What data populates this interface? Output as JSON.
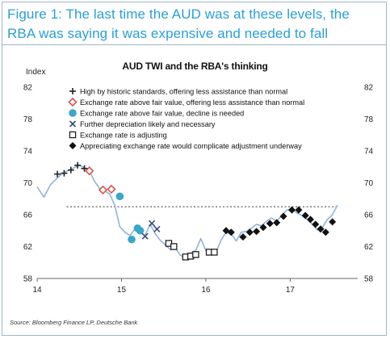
{
  "figure": {
    "title_line1": "Figure 1: The last time the AUD was at these levels, the",
    "title_line2": "RBA was saying it was expensive and needed to fall",
    "source": "Source: Bloomberg Finance LP, Deutsche Bank"
  },
  "chart_data": {
    "type": "line",
    "title": "AUD TWI and the RBA's thinking",
    "ylabel": "Index",
    "ylim": [
      58,
      82
    ],
    "xlim": [
      14,
      17.8
    ],
    "y_ticks": [
      "82",
      "78",
      "74",
      "70",
      "66",
      "62",
      "58"
    ],
    "x_ticks": [
      "14",
      "15",
      "16",
      "17"
    ],
    "grid": false,
    "legend_position": "top-center",
    "reference_line": {
      "value": 67,
      "style": "dotted",
      "x_range": [
        14.35,
        17.55
      ]
    },
    "series_line": {
      "name": "AUD TWI",
      "color": "#8fb4dc",
      "x": [
        14.0,
        14.08,
        14.16,
        14.24,
        14.3,
        14.36,
        14.42,
        14.5,
        14.56,
        14.62,
        14.68,
        14.74,
        14.8,
        14.86,
        14.92,
        14.98,
        15.04,
        15.1,
        15.16,
        15.22,
        15.28,
        15.34,
        15.4,
        15.46,
        15.52,
        15.58,
        15.64,
        15.7,
        15.76,
        15.82,
        15.88,
        15.94,
        16.0,
        16.06,
        16.12,
        16.18,
        16.24,
        16.3,
        16.36,
        16.42,
        16.48,
        16.54,
        16.6,
        16.66,
        16.72,
        16.78,
        16.84,
        16.9,
        16.96,
        17.02,
        17.08,
        17.14,
        17.2,
        17.26,
        17.32,
        17.38,
        17.44,
        17.5,
        17.56
      ],
      "y": [
        69.5,
        68.2,
        69.8,
        70.6,
        71.2,
        71.5,
        71.8,
        72.2,
        71.9,
        71.5,
        70.2,
        69.3,
        69.0,
        68.6,
        67.2,
        64.5,
        63.8,
        63.4,
        64.2,
        63.7,
        63.4,
        64.8,
        63.6,
        62.8,
        62.2,
        61.6,
        61.8,
        60.9,
        60.6,
        61.2,
        61.5,
        63.0,
        61.5,
        61.2,
        61.3,
        62.8,
        63.8,
        63.6,
        62.7,
        63.8,
        63.9,
        64.3,
        64.8,
        64.6,
        65.2,
        65.6,
        65.2,
        65.9,
        66.6,
        66.7,
        66.2,
        65.9,
        65.4,
        64.8,
        64.1,
        64.4,
        65.4,
        66.0,
        67.2
      ]
    },
    "series": [
      {
        "name": "High by historic standards, offering less assistance than normal",
        "marker": "plus",
        "color": "#222222",
        "points": [
          [
            14.24,
            71.1
          ],
          [
            14.32,
            71.2
          ],
          [
            14.4,
            71.6
          ],
          [
            14.48,
            72.2
          ],
          [
            14.56,
            71.8
          ]
        ]
      },
      {
        "name": "Exchange rate above fair value, offering less assistance than normal",
        "marker": "open-diamond",
        "color": "#e0524b",
        "points": [
          [
            14.62,
            71.5
          ],
          [
            14.78,
            69.1
          ],
          [
            14.88,
            69.2
          ]
        ]
      },
      {
        "name": "Exchange rate above fair value, decline is needed",
        "marker": "filled-circle",
        "color": "#3aa6c8",
        "points": [
          [
            14.98,
            68.3
          ],
          [
            15.12,
            62.9
          ],
          [
            15.19,
            64.3
          ],
          [
            15.22,
            64.0
          ]
        ]
      },
      {
        "name": "Further depreciation likely and necessary",
        "marker": "x",
        "color": "#334e7a",
        "points": [
          [
            15.28,
            63.3
          ],
          [
            15.36,
            64.9
          ],
          [
            15.42,
            64.2
          ]
        ]
      },
      {
        "name": "Exchange rate is adjusting",
        "marker": "open-square",
        "color": "#222222",
        "points": [
          [
            15.56,
            62.4
          ],
          [
            15.62,
            62.0
          ],
          [
            15.76,
            60.7
          ],
          [
            15.82,
            60.8
          ],
          [
            15.88,
            61.0
          ],
          [
            16.04,
            61.3
          ],
          [
            16.1,
            61.3
          ]
        ]
      },
      {
        "name": "Appreciating exchange rate would complicate adjustment underway",
        "marker": "filled-diamond",
        "color": "#111111",
        "points": [
          [
            16.24,
            64.0
          ],
          [
            16.3,
            63.8
          ],
          [
            16.44,
            63.2
          ],
          [
            16.52,
            63.8
          ],
          [
            16.6,
            63.9
          ],
          [
            16.68,
            64.4
          ],
          [
            16.76,
            64.9
          ],
          [
            16.84,
            65.0
          ],
          [
            16.92,
            65.8
          ],
          [
            17.02,
            66.6
          ],
          [
            17.1,
            66.6
          ],
          [
            17.18,
            65.9
          ],
          [
            17.24,
            65.4
          ],
          [
            17.3,
            64.8
          ],
          [
            17.36,
            64.2
          ],
          [
            17.42,
            63.8
          ],
          [
            17.5,
            65.1
          ]
        ]
      }
    ]
  }
}
